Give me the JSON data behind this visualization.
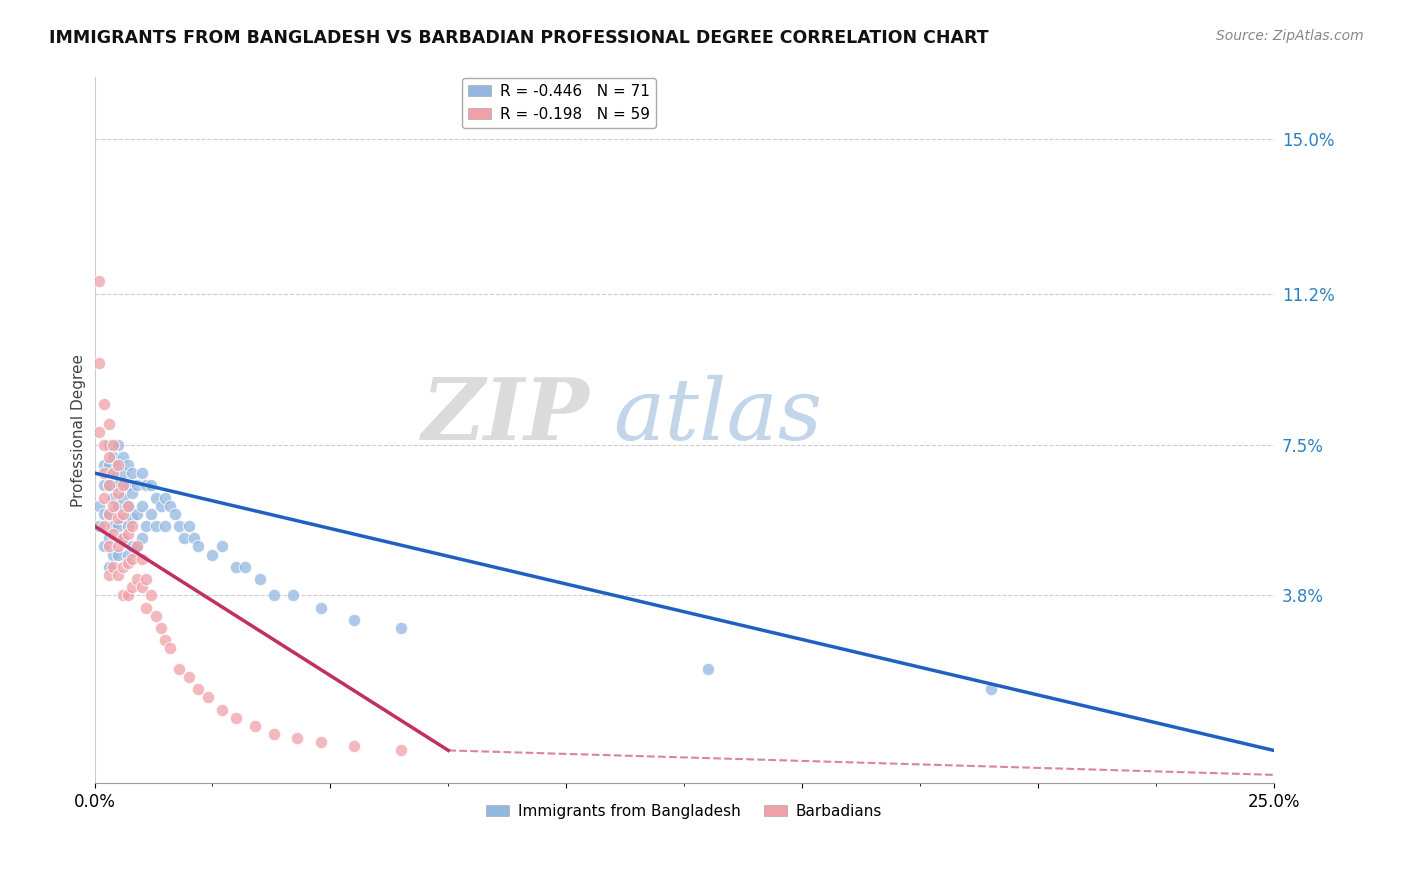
{
  "title": "IMMIGRANTS FROM BANGLADESH VS BARBADIAN PROFESSIONAL DEGREE CORRELATION CHART",
  "source": "Source: ZipAtlas.com",
  "ylabel": "Professional Degree",
  "right_yticks": [
    "15.0%",
    "11.2%",
    "7.5%",
    "3.8%"
  ],
  "right_ytick_vals": [
    0.15,
    0.112,
    0.075,
    0.038
  ],
  "xmin": 0.0,
  "xmax": 0.25,
  "ymin": -0.008,
  "ymax": 0.165,
  "legend_r1": "R = -0.446   N = 71",
  "legend_r2": "R = -0.198   N = 59",
  "series1_color": "#92b8e0",
  "series2_color": "#f0a0a8",
  "series1_label": "Immigrants from Bangladesh",
  "series2_label": "Barbadians",
  "line1_color": "#2060c0",
  "line2_color": "#c03060",
  "series1_x": [
    0.001,
    0.001,
    0.002,
    0.002,
    0.002,
    0.002,
    0.003,
    0.003,
    0.003,
    0.003,
    0.003,
    0.003,
    0.004,
    0.004,
    0.004,
    0.004,
    0.004,
    0.005,
    0.005,
    0.005,
    0.005,
    0.005,
    0.005,
    0.006,
    0.006,
    0.006,
    0.006,
    0.006,
    0.007,
    0.007,
    0.007,
    0.007,
    0.007,
    0.008,
    0.008,
    0.008,
    0.008,
    0.009,
    0.009,
    0.009,
    0.01,
    0.01,
    0.01,
    0.011,
    0.011,
    0.012,
    0.012,
    0.013,
    0.013,
    0.014,
    0.015,
    0.015,
    0.016,
    0.017,
    0.018,
    0.019,
    0.02,
    0.021,
    0.022,
    0.025,
    0.027,
    0.03,
    0.032,
    0.035,
    0.038,
    0.042,
    0.048,
    0.055,
    0.065,
    0.13,
    0.19
  ],
  "series1_y": [
    0.06,
    0.055,
    0.07,
    0.065,
    0.058,
    0.05,
    0.075,
    0.07,
    0.065,
    0.058,
    0.052,
    0.045,
    0.072,
    0.068,
    0.062,
    0.055,
    0.048,
    0.075,
    0.07,
    0.065,
    0.06,
    0.055,
    0.048,
    0.072,
    0.068,
    0.062,
    0.057,
    0.052,
    0.07,
    0.065,
    0.06,
    0.055,
    0.048,
    0.068,
    0.063,
    0.057,
    0.05,
    0.065,
    0.058,
    0.05,
    0.068,
    0.06,
    0.052,
    0.065,
    0.055,
    0.065,
    0.058,
    0.062,
    0.055,
    0.06,
    0.062,
    0.055,
    0.06,
    0.058,
    0.055,
    0.052,
    0.055,
    0.052,
    0.05,
    0.048,
    0.05,
    0.045,
    0.045,
    0.042,
    0.038,
    0.038,
    0.035,
    0.032,
    0.03,
    0.02,
    0.015
  ],
  "series2_x": [
    0.001,
    0.001,
    0.001,
    0.002,
    0.002,
    0.002,
    0.002,
    0.002,
    0.003,
    0.003,
    0.003,
    0.003,
    0.003,
    0.003,
    0.004,
    0.004,
    0.004,
    0.004,
    0.004,
    0.005,
    0.005,
    0.005,
    0.005,
    0.005,
    0.006,
    0.006,
    0.006,
    0.006,
    0.006,
    0.007,
    0.007,
    0.007,
    0.007,
    0.008,
    0.008,
    0.008,
    0.009,
    0.009,
    0.01,
    0.01,
    0.011,
    0.011,
    0.012,
    0.013,
    0.014,
    0.015,
    0.016,
    0.018,
    0.02,
    0.022,
    0.024,
    0.027,
    0.03,
    0.034,
    0.038,
    0.043,
    0.048,
    0.055,
    0.065
  ],
  "series2_y": [
    0.115,
    0.095,
    0.078,
    0.085,
    0.075,
    0.068,
    0.062,
    0.055,
    0.08,
    0.072,
    0.065,
    0.058,
    0.05,
    0.043,
    0.075,
    0.068,
    0.06,
    0.053,
    0.045,
    0.07,
    0.063,
    0.057,
    0.05,
    0.043,
    0.065,
    0.058,
    0.052,
    0.045,
    0.038,
    0.06,
    0.053,
    0.046,
    0.038,
    0.055,
    0.047,
    0.04,
    0.05,
    0.042,
    0.047,
    0.04,
    0.042,
    0.035,
    0.038,
    0.033,
    0.03,
    0.027,
    0.025,
    0.02,
    0.018,
    0.015,
    0.013,
    0.01,
    0.008,
    0.006,
    0.004,
    0.003,
    0.002,
    0.001,
    0.0
  ]
}
